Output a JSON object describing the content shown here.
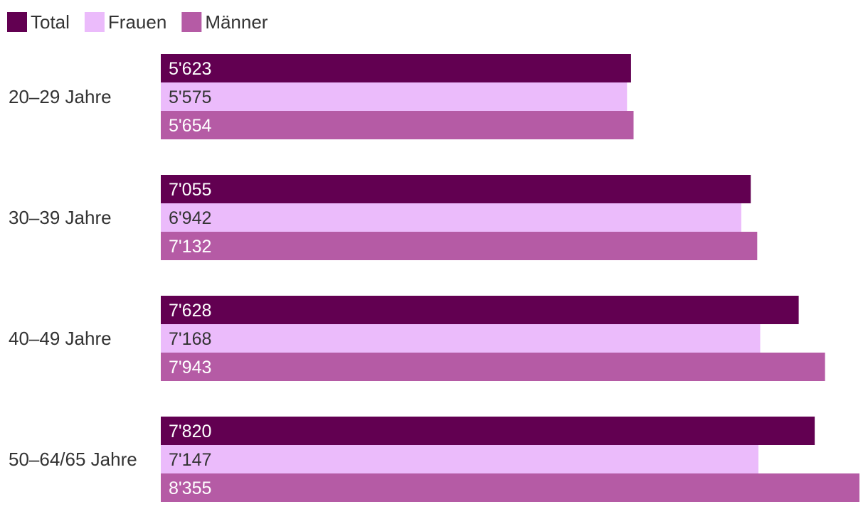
{
  "chart_data": {
    "type": "bar",
    "orientation": "horizontal",
    "categories": [
      "20–29 Jahre",
      "30–39 Jahre",
      "40–49 Jahre",
      "50–64/65 Jahre"
    ],
    "series": [
      {
        "name": "Total",
        "color": "#620051",
        "label_color": "#ffffff",
        "values": [
          5623,
          7055,
          7628,
          7820
        ],
        "labels": [
          "5'623",
          "7'055",
          "7'628",
          "7'820"
        ]
      },
      {
        "name": "Frauen",
        "color": "#ebbbfb",
        "label_color": "#333333",
        "values": [
          5575,
          6942,
          7168,
          7147
        ],
        "labels": [
          "5'575",
          "6'942",
          "7'168",
          "7'147"
        ]
      },
      {
        "name": "Männer",
        "color": "#b55ba5",
        "label_color": "#ffffff",
        "values": [
          5654,
          7132,
          7943,
          8355
        ],
        "labels": [
          "5'654",
          "7'132",
          "7'943",
          "8'355"
        ]
      }
    ],
    "xlim": [
      0,
      8355
    ],
    "grid": false,
    "legend_position": "top-left",
    "title": "",
    "xlabel": "",
    "ylabel": ""
  }
}
